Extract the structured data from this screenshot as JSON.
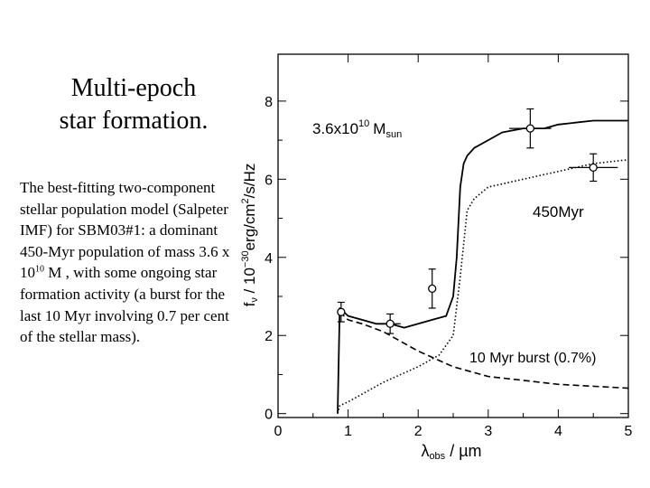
{
  "slide": {
    "title_line1": "Multi-epoch",
    "title_line2": "star formation.",
    "caption_part1": " The best-fitting two-component stellar population model (Salpeter IMF) for SBM03#1: a dominant 450-Myr population of mass 3.6 x 10",
    "caption_sup": "10",
    "caption_part2": " M , with some ongoing star formation activity (a burst for the last 10 Myr involving 0.7 per cent of the stellar mass)."
  },
  "chart_data": {
    "type": "line",
    "title": "",
    "xlabel": "λ_obs / µm",
    "ylabel": "f_ν / 10^-30 erg/cm^2/s/Hz",
    "xlim": [
      0,
      5
    ],
    "ylim": [
      -0.1,
      9.2
    ],
    "xticks": [
      "0",
      "1",
      "2",
      "3",
      "4",
      "5"
    ],
    "yticks": [
      "0",
      "2",
      "4",
      "6",
      "8"
    ],
    "grid": false,
    "annotations": {
      "mass_main": "3.6x10",
      "mass_exp": "10",
      "mass_unit": "M",
      "mass_sub": "sun",
      "old_pop": "450Myr",
      "burst": "10 Myr burst (0.7%)"
    },
    "series": [
      {
        "role": "total model",
        "style": "solid",
        "x": [
          0.85,
          0.88,
          1.0,
          1.2,
          1.4,
          1.6,
          1.8,
          2.0,
          2.2,
          2.4,
          2.5,
          2.55,
          2.6,
          2.65,
          2.7,
          2.8,
          3.0,
          3.2,
          3.5,
          3.8,
          4.0,
          4.5,
          5.0
        ],
        "y": [
          0.0,
          2.7,
          2.5,
          2.4,
          2.3,
          2.3,
          2.2,
          2.3,
          2.4,
          2.5,
          3.0,
          4.0,
          5.8,
          6.4,
          6.6,
          6.8,
          7.0,
          7.2,
          7.3,
          7.3,
          7.4,
          7.5,
          7.5
        ]
      },
      {
        "role": "450 Myr population",
        "style": "dotted",
        "x": [
          0.85,
          0.88,
          1.0,
          1.2,
          1.5,
          2.0,
          2.3,
          2.5,
          2.6,
          2.7,
          2.8,
          3.0,
          3.5,
          4.0,
          4.5,
          5.0
        ],
        "y": [
          0.0,
          0.2,
          0.3,
          0.5,
          0.8,
          1.2,
          1.5,
          2.0,
          3.5,
          5.2,
          5.5,
          5.8,
          6.0,
          6.2,
          6.4,
          6.5
        ]
      },
      {
        "role": "10 Myr burst",
        "style": "dashed",
        "x": [
          0.88,
          1.0,
          1.2,
          1.5,
          2.0,
          2.5,
          3.0,
          3.5,
          4.0,
          4.5,
          5.0
        ],
        "y": [
          2.6,
          2.4,
          2.3,
          2.1,
          1.6,
          1.2,
          0.95,
          0.85,
          0.75,
          0.7,
          0.65
        ]
      },
      {
        "role": "observed photometry",
        "style": "markers",
        "x": [
          0.9,
          1.6,
          2.2,
          3.6,
          4.5
        ],
        "y": [
          2.6,
          2.3,
          3.2,
          7.3,
          6.3
        ],
        "yerr": [
          0.25,
          0.25,
          0.5,
          0.5,
          0.35
        ],
        "xerr": [
          0.05,
          0.15,
          0.05,
          0.3,
          0.35
        ]
      }
    ]
  }
}
